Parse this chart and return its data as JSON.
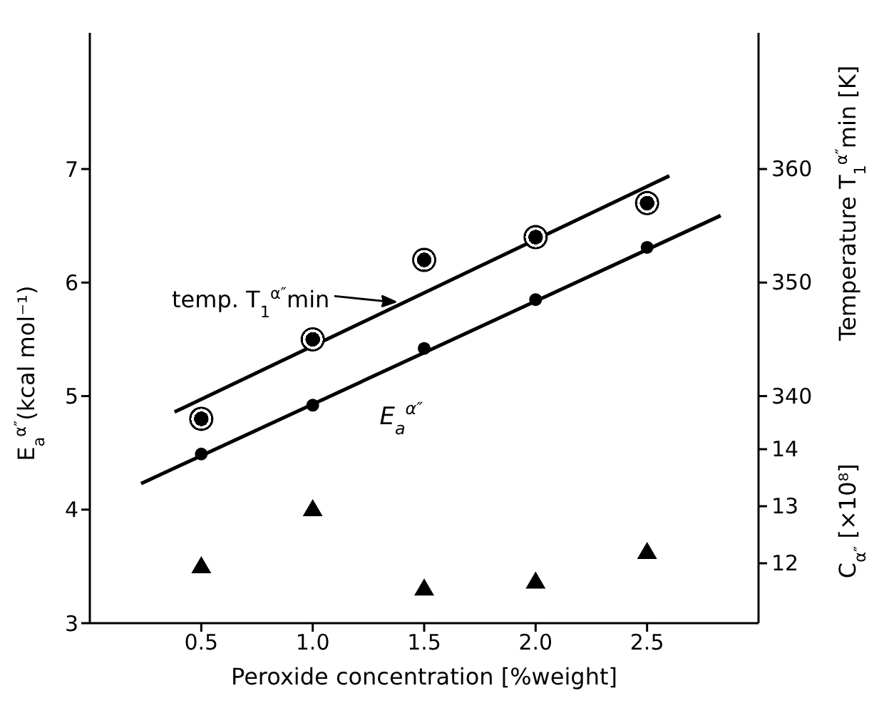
{
  "chart_data": {
    "type": "scatter",
    "xlabel": "Peroxide concentration [%weight]",
    "ylabel": "E$_{a}$$^{α″}$(kcal mol⁻¹)",
    "y2label": "Temperature T$_{1}$$^{α″}$min [K]",
    "y3label": "C$_{α″}$ [×10⁸]",
    "xlim": [
      0,
      3
    ],
    "xticks": [
      {
        "value": 0.5,
        "label": "0.5"
      },
      {
        "value": 1,
        "label": "1.0"
      },
      {
        "value": 1.5,
        "label": "1.5"
      },
      {
        "value": 2,
        "label": "2.0"
      },
      {
        "value": 2.5,
        "label": "2.5"
      }
    ],
    "ylim": [
      3,
      8.2
    ],
    "yticks": [
      3,
      4,
      5,
      6,
      7
    ],
    "y2lim": [
      320,
      372
    ],
    "y2ticks": [
      340,
      350,
      360
    ],
    "y3lim": [
      10.95,
      21.3
    ],
    "y3ticks": [
      12,
      13,
      14
    ],
    "x": [
      0.5,
      1,
      1.5,
      2,
      2.5
    ],
    "series": [
      {
        "color": "#000000",
        "marker": "circle",
        "values": [
          4.49,
          4.92,
          5.42,
          5.85,
          6.31
        ]
      },
      {
        "type": "line",
        "color": "#000000",
        "marker": "none",
        "x": [
          0.23,
          2.83
        ],
        "values": [
          4.23,
          6.59
        ]
      },
      {
        "type": "scatter",
        "color": "#000000",
        "marker": "circle",
        "axis": "y2",
        "values": [
          338,
          345,
          352,
          354,
          357
        ]
      },
      {
        "type": "line",
        "color": "#000000",
        "marker": "none",
        "axis": "y2",
        "x": [
          0.38,
          2.6
        ],
        "values": [
          338.6,
          359.4
        ]
      },
      {
        "type": "scatter",
        "color": "#000000",
        "marker": "triangle",
        "axis": "y3",
        "values": [
          11.95,
          12.95,
          11.56,
          11.68,
          12.2
        ]
      }
    ],
    "annotations": [
      {
        "text": "temp. T$_{1}$$^{α″}$min",
        "x": 1.37,
        "y": 5.83
      },
      "E$_{a}$$^{α″}$"
    ]
  }
}
